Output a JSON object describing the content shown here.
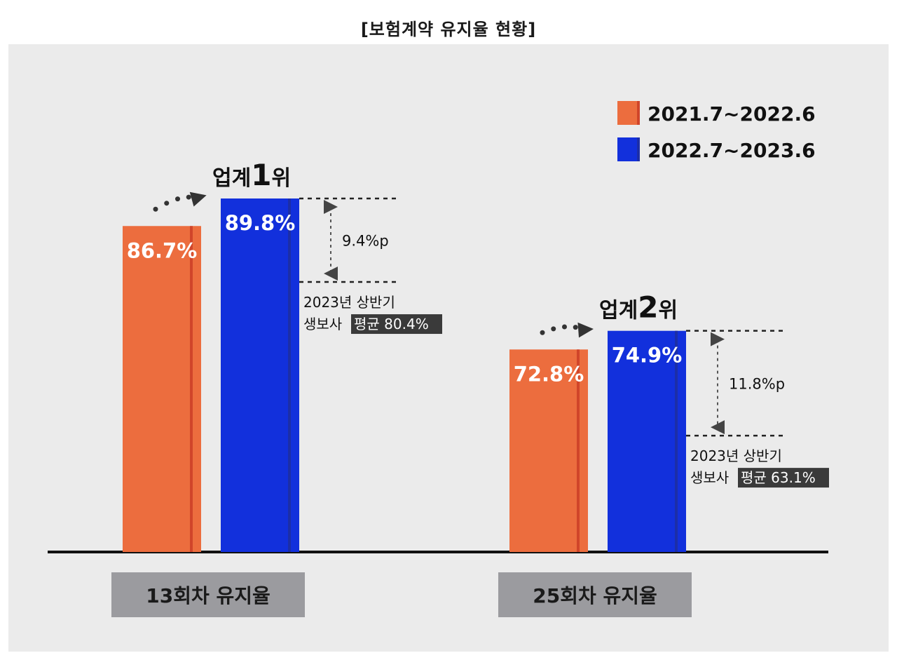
{
  "title": "[보험계약 유지율 현황]",
  "colors": {
    "series_2021": "#ec6d3e",
    "series_2022": "#1230dc",
    "panel_bg": "#ebebeb",
    "category_box": "#9b9b9f",
    "note_highlight": "#3a3a3a"
  },
  "chart_data": {
    "type": "bar",
    "categories": [
      "13회차 유지율",
      "25회차 유지율"
    ],
    "series": [
      {
        "name": "2021.7~2022.6",
        "values": [
          86.7,
          72.8
        ],
        "labels": [
          "86.7%",
          "72.8%"
        ]
      },
      {
        "name": "2022.7~2023.6",
        "values": [
          89.8,
          74.9
        ],
        "labels": [
          "89.8%",
          "74.9%"
        ]
      }
    ],
    "averages": [
      80.4,
      63.1
    ],
    "ylim": [
      0,
      100
    ],
    "grid": false,
    "legend_position": "top-right",
    "annotations": [
      {
        "rank_prefix": "업계",
        "rank_number": "1",
        "rank_suffix": "위",
        "diff": "9.4%p",
        "note_line1": "2023년 상반기",
        "note_prefix": "생보사",
        "note_highlight": "평균 80.4%"
      },
      {
        "rank_prefix": "업계",
        "rank_number": "2",
        "rank_suffix": "위",
        "diff": "11.8%p",
        "note_line1": "2023년 상반기",
        "note_prefix": "생보사",
        "note_highlight": "평균 63.1%"
      }
    ]
  }
}
